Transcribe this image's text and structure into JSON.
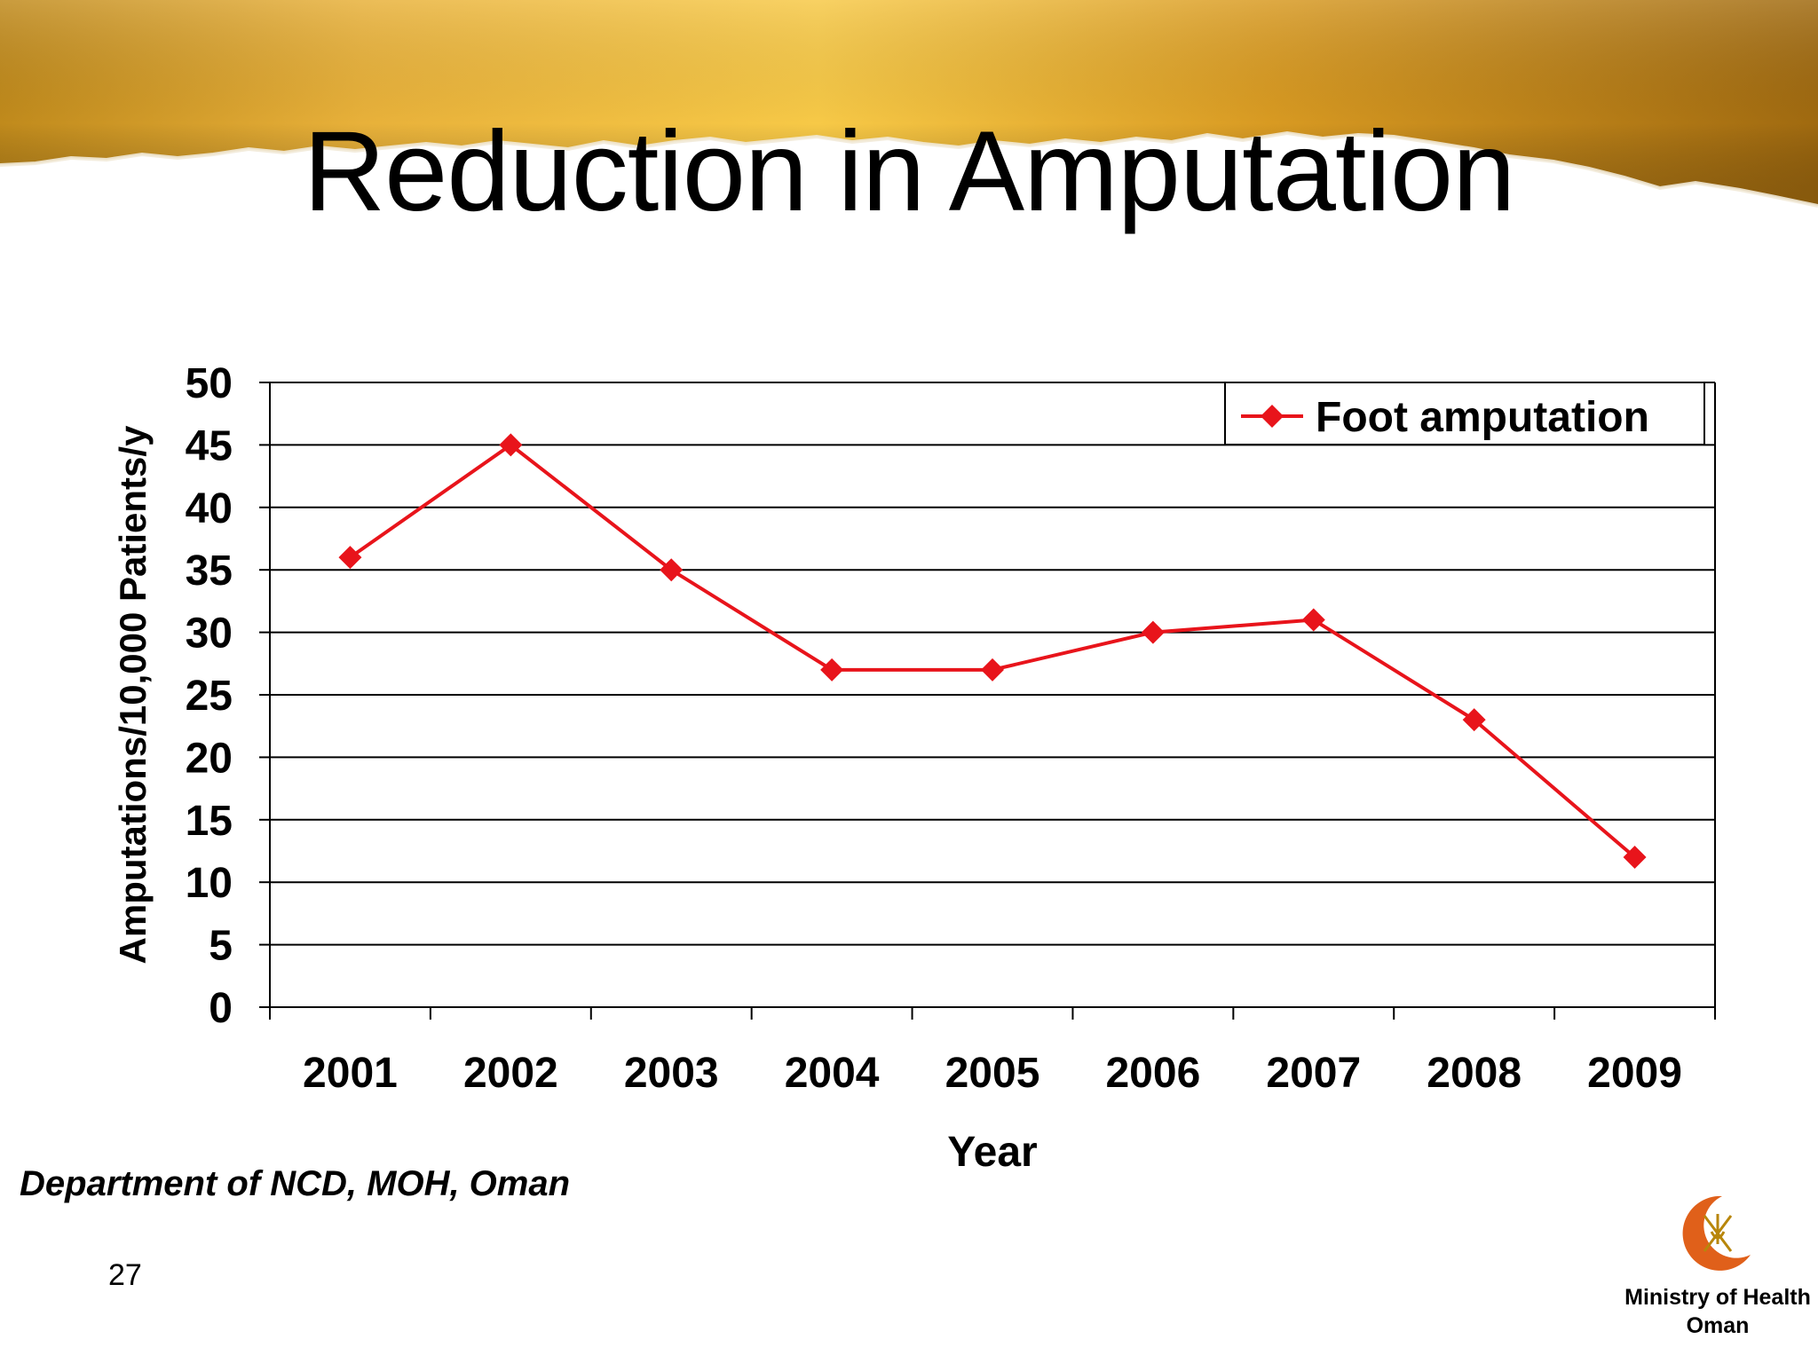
{
  "slide": {
    "title": "Reduction in Amputation",
    "source": "Department of NCD, MOH, Oman",
    "page_number": "27",
    "logo": {
      "icon": "ministry-emblem-icon",
      "line1": "Ministry of Health",
      "line2": "Oman"
    },
    "colors": {
      "banner_dark": "#A8760F",
      "banner_light": "#F5C33C",
      "series": "#E8141B"
    }
  },
  "chart_data": {
    "type": "line",
    "title": "",
    "xlabel": "Year",
    "ylabel": "Amputations/10,000 Patients/y",
    "categories": [
      "2001",
      "2002",
      "2003",
      "2004",
      "2005",
      "2006",
      "2007",
      "2008",
      "2009"
    ],
    "series": [
      {
        "name": "Foot amputation",
        "values": [
          36,
          45,
          35,
          27,
          27,
          30,
          31,
          23,
          12
        ],
        "color": "#E8141B",
        "marker": "diamond"
      }
    ],
    "ylim": [
      0,
      50
    ],
    "yticks": [
      "0",
      "5",
      "10",
      "15",
      "20",
      "25",
      "30",
      "35",
      "40",
      "45",
      "50"
    ],
    "grid": "horizontal",
    "legend": "top-right"
  }
}
